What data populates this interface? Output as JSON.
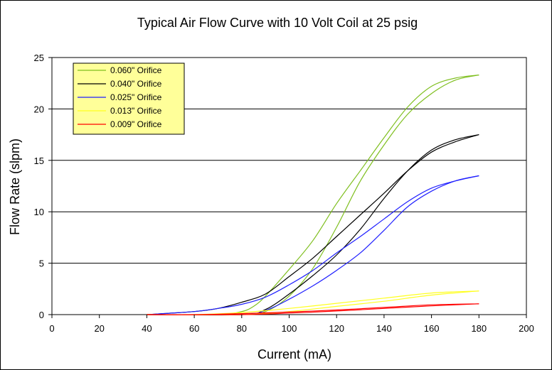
{
  "chart_data": {
    "type": "line",
    "title": "Typical Air Flow Curve with 10 Volt Coil at 25 psig",
    "xlabel": "Current (mA)",
    "ylabel": "Flow Rate (slpm)",
    "xlim": [
      0,
      200
    ],
    "ylim": [
      0,
      25
    ],
    "xticks": [
      0,
      20,
      40,
      60,
      80,
      100,
      120,
      140,
      160,
      180,
      200
    ],
    "yticks": [
      0,
      5,
      10,
      15,
      20,
      25
    ],
    "grid": "horizontal",
    "legend_position": "top-left",
    "series": [
      {
        "name": "0.060\" Orifice",
        "color": "#7fbf1f",
        "up": [
          [
            40,
            0
          ],
          [
            80,
            0
          ],
          [
            90,
            0.3
          ],
          [
            100,
            1.8
          ],
          [
            110,
            4.5
          ],
          [
            120,
            8.5
          ],
          [
            130,
            13
          ],
          [
            140,
            16.5
          ],
          [
            150,
            19.5
          ],
          [
            160,
            21.5
          ],
          [
            170,
            22.8
          ],
          [
            180,
            23.3
          ]
        ],
        "down": [
          [
            180,
            23.3
          ],
          [
            170,
            23
          ],
          [
            160,
            22.2
          ],
          [
            150,
            20.2
          ],
          [
            140,
            17.2
          ],
          [
            130,
            14
          ],
          [
            120,
            10.8
          ],
          [
            110,
            7.2
          ],
          [
            100,
            4.4
          ],
          [
            90,
            1.8
          ],
          [
            85,
            0.8
          ],
          [
            80,
            0.3
          ],
          [
            70,
            0
          ],
          [
            40,
            0
          ]
        ]
      },
      {
        "name": "0.040\" Orifice",
        "color": "#000000",
        "up": [
          [
            40,
            0
          ],
          [
            80,
            0
          ],
          [
            90,
            0.5
          ],
          [
            100,
            2
          ],
          [
            110,
            3.8
          ],
          [
            120,
            5.8
          ],
          [
            130,
            8.3
          ],
          [
            140,
            11.3
          ],
          [
            150,
            14
          ],
          [
            160,
            16
          ],
          [
            170,
            17
          ],
          [
            180,
            17.5
          ]
        ],
        "down": [
          [
            180,
            17.5
          ],
          [
            170,
            16.8
          ],
          [
            160,
            15.8
          ],
          [
            150,
            14
          ],
          [
            140,
            11.8
          ],
          [
            130,
            9.7
          ],
          [
            120,
            7.6
          ],
          [
            110,
            5.5
          ],
          [
            100,
            3.7
          ],
          [
            90,
            2
          ],
          [
            80,
            1.2
          ],
          [
            70,
            0.6
          ],
          [
            60,
            0.3
          ],
          [
            40,
            0
          ]
        ]
      },
      {
        "name": "0.025\" Orifice",
        "color": "#1f1fff",
        "up": [
          [
            40,
            0
          ],
          [
            80,
            0
          ],
          [
            90,
            0.4
          ],
          [
            100,
            1.5
          ],
          [
            110,
            2.8
          ],
          [
            120,
            4.3
          ],
          [
            130,
            6
          ],
          [
            140,
            8.2
          ],
          [
            150,
            10.5
          ],
          [
            160,
            12
          ],
          [
            170,
            13
          ],
          [
            180,
            13.5
          ]
        ],
        "down": [
          [
            180,
            13.5
          ],
          [
            170,
            13
          ],
          [
            160,
            12.3
          ],
          [
            150,
            11
          ],
          [
            140,
            9.3
          ],
          [
            130,
            7.6
          ],
          [
            120,
            6
          ],
          [
            110,
            4.3
          ],
          [
            100,
            2.9
          ],
          [
            90,
            1.7
          ],
          [
            80,
            1
          ],
          [
            70,
            0.6
          ],
          [
            60,
            0.3
          ],
          [
            40,
            0
          ]
        ]
      },
      {
        "name": "0.013\" Orifice",
        "color": "#ffff1f",
        "up": [
          [
            40,
            0
          ],
          [
            80,
            0
          ],
          [
            100,
            0.3
          ],
          [
            120,
            0.8
          ],
          [
            140,
            1.3
          ],
          [
            160,
            1.9
          ],
          [
            180,
            2.3
          ]
        ],
        "down": [
          [
            180,
            2.3
          ],
          [
            160,
            2.1
          ],
          [
            140,
            1.6
          ],
          [
            120,
            1.1
          ],
          [
            100,
            0.6
          ],
          [
            80,
            0.2
          ],
          [
            60,
            0
          ],
          [
            40,
            0
          ]
        ]
      },
      {
        "name": "0.009\" Orifice",
        "color": "#ff0000",
        "up": [
          [
            40,
            0
          ],
          [
            80,
            0
          ],
          [
            100,
            0.15
          ],
          [
            120,
            0.35
          ],
          [
            140,
            0.6
          ],
          [
            160,
            0.85
          ],
          [
            180,
            1.05
          ]
        ],
        "down": [
          [
            180,
            1.05
          ],
          [
            160,
            0.95
          ],
          [
            140,
            0.7
          ],
          [
            120,
            0.45
          ],
          [
            100,
            0.25
          ],
          [
            80,
            0.1
          ],
          [
            60,
            0
          ],
          [
            40,
            0
          ]
        ]
      }
    ]
  }
}
